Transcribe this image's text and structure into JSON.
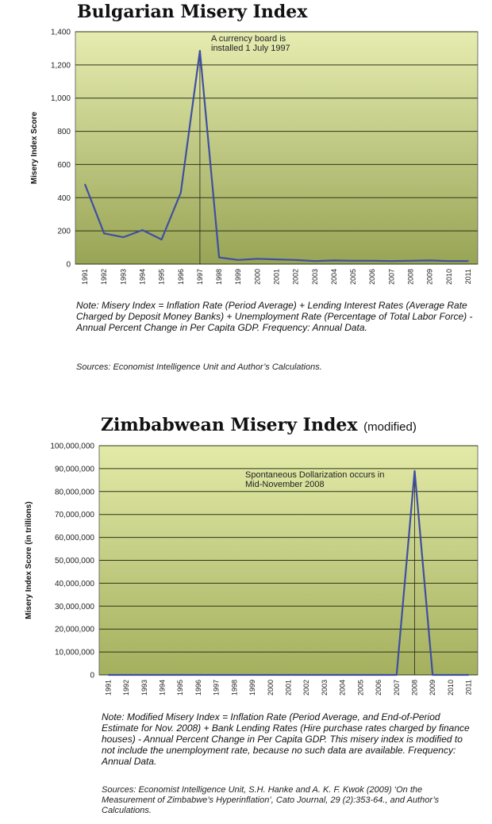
{
  "chart_data": [
    {
      "type": "line",
      "title": "Bulgarian Misery Index",
      "ylabel": "Misery Index Score",
      "ylim": [
        0,
        1400
      ],
      "yticks": [
        0,
        200,
        400,
        600,
        800,
        1000,
        1200,
        1400
      ],
      "ytick_labels": [
        "0",
        "200",
        "400",
        "600",
        "800",
        "1,000",
        "1,200",
        "1,400"
      ],
      "categories": [
        "1991",
        "1992",
        "1993",
        "1994",
        "1995",
        "1996",
        "1997",
        "1998",
        "1999",
        "2000",
        "2001",
        "2002",
        "2003",
        "2004",
        "2005",
        "2006",
        "2007",
        "2008",
        "2009",
        "2010",
        "2011"
      ],
      "values": [
        480,
        185,
        162,
        205,
        148,
        430,
        1285,
        40,
        25,
        32,
        28,
        25,
        18,
        22,
        20,
        20,
        18,
        20,
        22,
        18,
        18
      ],
      "annotation": {
        "lines": [
          "A currency board is",
          "installed 1 July 1997"
        ],
        "category": "1997"
      },
      "grid": true,
      "colors": {
        "line": "#3f4fa0",
        "bg_top": "#e6ecb0",
        "bg_bottom": "#98a455",
        "grid": "#2e3516"
      },
      "note": "Note: Misery Index = Inflation Rate (Period Average) + Lending Interest Rates (Average Rate Charged by Deposit Money Banks) + Unemployment Rate (Percentage of Total Labor Force) - Annual Percent Change in Per Capita GDP. Frequency: Annual Data.",
      "sources": "Sources: Economist Intelligence Unit and Author’s Calculations."
    },
    {
      "type": "line",
      "title": "Zimbabwean Misery Index",
      "title_suffix": "(modified)",
      "ylabel": "Misery Index Score (in trillions)",
      "ylim": [
        0,
        100000000
      ],
      "yticks": [
        0,
        10000000,
        20000000,
        30000000,
        40000000,
        50000000,
        60000000,
        70000000,
        80000000,
        90000000,
        100000000
      ],
      "ytick_labels": [
        "0",
        "10,000,000",
        "20,000,000",
        "30,000,000",
        "40,000,000",
        "50,000,000",
        "60,000,000",
        "70,000,000",
        "80,000,000",
        "90,000,000",
        "100,000,000"
      ],
      "categories": [
        "1991",
        "1992",
        "1993",
        "1994",
        "1995",
        "1996",
        "1997",
        "1998",
        "1999",
        "2000",
        "2001",
        "2002",
        "2003",
        "2004",
        "2005",
        "2006",
        "2007",
        "2008",
        "2009",
        "2010",
        "2011"
      ],
      "values": [
        0,
        0,
        0,
        0,
        0,
        0,
        0,
        0,
        0,
        0,
        0,
        0,
        0,
        0,
        0,
        0,
        0,
        89000000,
        0,
        0,
        0
      ],
      "annotation": {
        "lines": [
          "Spontaneous Dollarization occurs in",
          "Mid-November 2008"
        ],
        "category": "2008"
      },
      "grid": true,
      "colors": {
        "line": "#3f4fa0",
        "bg_top": "#e3eaa8",
        "bg_bottom": "#a4b05e",
        "grid": "#2e3516"
      },
      "note": "Note: Modified Misery Index = Inflation Rate (Period Average, and End-of-Period Estimate for Nov. 2008) + Bank Lending Rates (Hire purchase rates charged by finance houses) - Annual Percent Change in Per Capita GDP. This misery index is modified to not include the unemployment rate, because no such data are available. Frequency: Annual Data.",
      "sources": "Sources: Economist Intelligence Unit, S.H. Hanke and A. K. F. Kwok (2009) ‘On the Measurement of Zimbabwe’s Hyperinflation’, Cato Journal, 29 (2):353-64., and Author’s Calculations."
    }
  ]
}
